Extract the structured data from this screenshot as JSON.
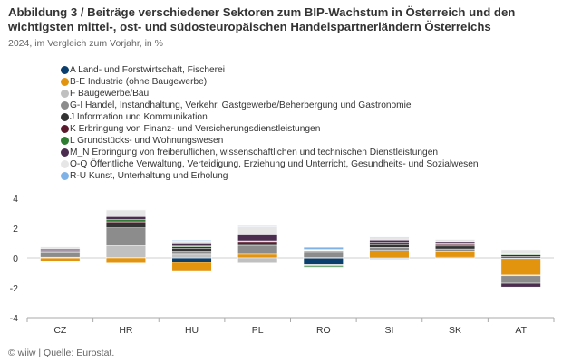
{
  "header": {
    "title": "Abbildung 3 / Beiträge verschiedener Sektoren zum BIP-Wachstum in Österreich und den wichtigsten mittel-, ost- und südosteuropäischen Handelspartnerländern Österreichs",
    "subtitle": "2024, im Vergleich zum Vorjahr, in %"
  },
  "footer": {
    "source": "© wiiw | Quelle: Eurostat."
  },
  "chart_data": {
    "type": "bar",
    "stacked": true,
    "title": "Abbildung 3 / Beiträge verschiedener Sektoren zum BIP-Wachstum in Österreich und den wichtigsten mittel-, ost- und südosteuropäischen Handelspartnerländern Österreichs",
    "subtitle": "2024, im Vergleich zum Vorjahr, in %",
    "xlabel": "",
    "ylabel": "",
    "ylim": [
      -4,
      4
    ],
    "yticks": [
      -4,
      -2,
      0,
      2,
      4
    ],
    "grid": false,
    "legend_position": "top-left",
    "categories": [
      "CZ",
      "HR",
      "HU",
      "PL",
      "RO",
      "SI",
      "SK",
      "AT"
    ],
    "series": [
      {
        "name": "A Land- und Forstwirtschaft, Fischerei",
        "color": "#0b3f6e",
        "values": [
          0.0,
          0.02,
          -0.3,
          0.0,
          -0.45,
          -0.05,
          0.05,
          -0.05
        ]
      },
      {
        "name": "B-E Industrie (ohne Baugewerbe)",
        "color": "#e3940f",
        "values": [
          -0.2,
          -0.35,
          -0.55,
          0.25,
          0.02,
          0.5,
          0.35,
          -1.1
        ]
      },
      {
        "name": "F Baugewerbe/Bau",
        "color": "#c0c0c0",
        "values": [
          0.05,
          0.8,
          0.25,
          -0.35,
          -0.1,
          -0.05,
          0.05,
          -0.05
        ]
      },
      {
        "name": "G-I Handel, Instandhaltung, Verkehr, Gastgewerbe/Beherbergung und Gastronomie",
        "color": "#8c8c8c",
        "values": [
          0.3,
          1.2,
          0.2,
          0.6,
          0.35,
          0.2,
          0.15,
          -0.5
        ]
      },
      {
        "name": "J Information und Kommunikation",
        "color": "#333333",
        "values": [
          0.1,
          0.25,
          0.2,
          0.15,
          0.1,
          0.2,
          0.2,
          0.1
        ]
      },
      {
        "name": "K Erbringung von Finanz- und Versicherungsdienstleistungen",
        "color": "#5c1a2e",
        "values": [
          0.05,
          0.15,
          0.1,
          0.1,
          0.02,
          0.1,
          0.1,
          0.1
        ]
      },
      {
        "name": "L Grundstücks- und Wohnungswesen",
        "color": "#2e7d32",
        "values": [
          0.0,
          0.15,
          0.05,
          0.05,
          -0.08,
          0.05,
          0.05,
          0.05
        ]
      },
      {
        "name": "M_N Erbringung von freiberuflichen, wissenschaftlichen und technischen Dienstleistungen",
        "color": "#4b2d4f",
        "values": [
          0.1,
          0.2,
          0.15,
          0.4,
          0.03,
          0.15,
          0.15,
          -0.25
        ]
      },
      {
        "name": "O-Q Öffentliche Verwaltung, Verteidigung, Erziehung und Unterricht, Gesundheits- und Sozialwesen",
        "color": "#e6e6e6",
        "values": [
          0.15,
          0.45,
          0.2,
          0.55,
          0.05,
          0.15,
          0.15,
          0.3
        ]
      },
      {
        "name": "R-U Kunst, Unterhaltung und Erholung",
        "color": "#7fb3e8",
        "values": [
          0.0,
          0.03,
          0.05,
          0.05,
          0.15,
          0.05,
          0.02,
          0.0
        ]
      }
    ]
  }
}
